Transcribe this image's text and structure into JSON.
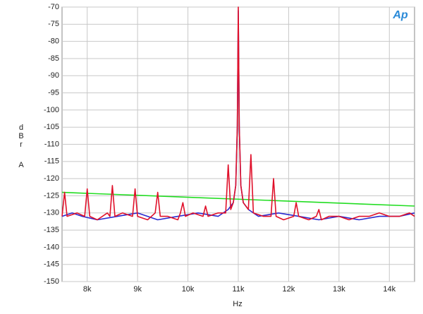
{
  "chart_data": {
    "type": "line",
    "logo": "Ap",
    "xlabel": "Hz",
    "ylabel": "dBr",
    "ylabel_unit": "A",
    "grid": true,
    "xlim": [
      7500,
      14500
    ],
    "xticks": [
      {
        "value": 8000,
        "label": "8k"
      },
      {
        "value": 9000,
        "label": "9k"
      },
      {
        "value": 10000,
        "label": "10k"
      },
      {
        "value": 11000,
        "label": "11k"
      },
      {
        "value": 12000,
        "label": "12k"
      },
      {
        "value": 13000,
        "label": "13k"
      },
      {
        "value": 14000,
        "label": "14k"
      }
    ],
    "ylim": [
      -150,
      -70
    ],
    "yticks": [
      -70,
      -75,
      -80,
      -85,
      -90,
      -95,
      -100,
      -105,
      -110,
      -115,
      -120,
      -125,
      -130,
      -135,
      -140,
      -145,
      -150
    ],
    "series": [
      {
        "color": "#22dd22",
        "x": [
          7500,
          14500
        ],
        "values": [
          -124,
          -128
        ]
      },
      {
        "color": "#2a2ad0",
        "x": [
          7500,
          7700,
          7900,
          8200,
          8600,
          9000,
          9400,
          9800,
          10200,
          10600,
          10800,
          10900,
          10950,
          10980,
          11000,
          11020,
          11050,
          11100,
          11200,
          11400,
          11800,
          12200,
          12600,
          13000,
          13400,
          13800,
          14200,
          14500
        ],
        "values": [
          -131,
          -130,
          -131,
          -132,
          -131,
          -130,
          -132,
          -131,
          -130,
          -131,
          -129,
          -127,
          -122,
          -105,
          -71,
          -105,
          -122,
          -127,
          -129,
          -131,
          -130,
          -131,
          -132,
          -131,
          -132,
          -131,
          -131,
          -130
        ]
      },
      {
        "color": "#e0102a",
        "x": [
          7500,
          7550,
          7600,
          7800,
          7950,
          8000,
          8050,
          8200,
          8400,
          8450,
          8500,
          8550,
          8700,
          8900,
          8950,
          9000,
          9200,
          9350,
          9400,
          9450,
          9600,
          9800,
          9850,
          9900,
          9950,
          10100,
          10300,
          10350,
          10400,
          10600,
          10750,
          10800,
          10850,
          10900,
          10950,
          10980,
          11000,
          11020,
          11050,
          11100,
          11200,
          11250,
          11300,
          11500,
          11650,
          11700,
          11750,
          11900,
          12100,
          12150,
          12200,
          12400,
          12550,
          12600,
          12650,
          12800,
          13000,
          13200,
          13400,
          13600,
          13800,
          14000,
          14200,
          14400,
          14500
        ],
        "values": [
          -131,
          -124,
          -131,
          -130,
          -131,
          -123,
          -131,
          -132,
          -130,
          -131,
          -122,
          -131,
          -130,
          -131,
          -123,
          -131,
          -132,
          -130,
          -124,
          -131,
          -131,
          -132,
          -130,
          -127,
          -131,
          -130,
          -131,
          -128,
          -131,
          -130,
          -130,
          -116,
          -129,
          -127,
          -122,
          -105,
          -70,
          -105,
          -122,
          -127,
          -129,
          -113,
          -130,
          -131,
          -131,
          -120,
          -131,
          -132,
          -131,
          -127,
          -131,
          -132,
          -131,
          -129,
          -132,
          -131,
          -131,
          -132,
          -131,
          -131,
          -130,
          -131,
          -131,
          -130,
          -131
        ]
      }
    ]
  }
}
